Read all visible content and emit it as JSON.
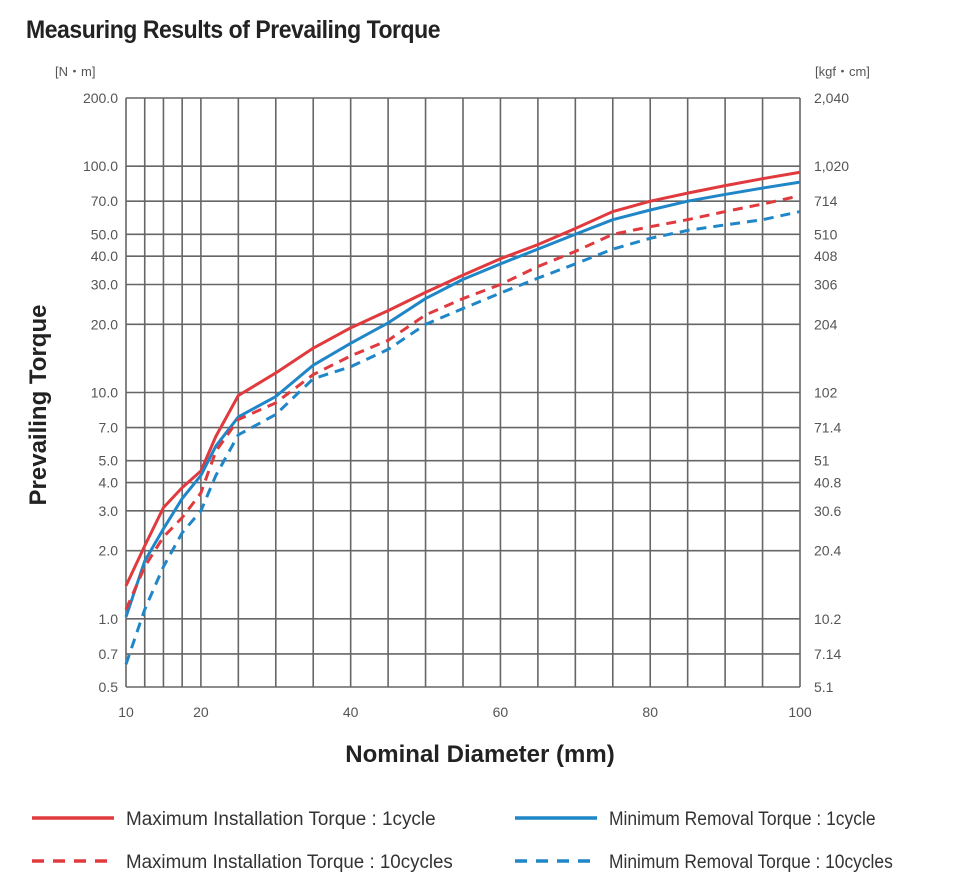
{
  "chart_data": {
    "type": "line",
    "title": "Measuring Results of Prevailing Torque",
    "xlabel": "Nominal Diameter (mm)",
    "ylabel": "Prevailing Torque",
    "y_unit_left": "[N・m]",
    "y_unit_right": "[kgf・cm]",
    "xlim": [
      10,
      100
    ],
    "ylim": [
      0.5,
      200
    ],
    "y_scale": "log",
    "grid": true,
    "legend_placement": "bottom",
    "x_ticks": [
      10,
      20,
      40,
      60,
      80,
      100
    ],
    "x_gridlines": [
      10,
      12.5,
      15,
      17.5,
      20,
      25,
      30,
      35,
      40,
      45,
      50,
      55,
      60,
      65,
      70,
      75,
      80,
      85,
      90,
      95,
      100
    ],
    "y_ticks": [
      200,
      100,
      70,
      50,
      40,
      30,
      20,
      10,
      7,
      5,
      4,
      3,
      2,
      1,
      0.7,
      0.5
    ],
    "y_tick_labels_left": [
      "200.0",
      "100.0",
      "70.0",
      "50.0",
      "40.0",
      "30.0",
      "20.0",
      "10.0",
      "7.0",
      "5.0",
      "4.0",
      "3.0",
      "2.0",
      "1.0",
      "0.7",
      "0.5"
    ],
    "y_tick_labels_right": [
      "2,040",
      "1,020",
      "714",
      "510",
      "408",
      "306",
      "204",
      "102",
      "71.4",
      "51",
      "40.8",
      "30.6",
      "20.4",
      "10.2",
      "7.14",
      "5.1"
    ],
    "x": [
      10,
      12.5,
      15,
      17.5,
      20,
      22,
      25,
      30,
      35,
      40,
      45,
      50,
      55,
      60,
      65,
      70,
      75,
      80,
      85,
      90,
      95,
      100
    ],
    "series": [
      {
        "name": "Maximum Installation Torque : 1cycle",
        "color": "#e03a3e",
        "style": "solid",
        "values": [
          1.4,
          2.1,
          3.1,
          3.8,
          4.5,
          6.4,
          9.7,
          12.2,
          15.7,
          19.3,
          23,
          27.7,
          33,
          39,
          45,
          53,
          63,
          70,
          76,
          82,
          88,
          94
        ]
      },
      {
        "name": "Minimum Removal Torque : 1cycle",
        "color": "#1f86c8",
        "style": "solid",
        "values": [
          1.02,
          1.8,
          2.5,
          3.4,
          4.3,
          5.8,
          7.8,
          9.6,
          13.2,
          16.5,
          20.3,
          26,
          31.6,
          37,
          43,
          50,
          58,
          64,
          70,
          75,
          80,
          85
        ]
      },
      {
        "name": "Maximum Installation Torque : 10cycles",
        "color": "#e03a3e",
        "style": "dashed",
        "values": [
          1.1,
          1.7,
          2.3,
          2.8,
          3.6,
          5.5,
          7.6,
          9.0,
          12,
          14.5,
          17,
          22,
          26,
          30,
          36,
          42,
          50,
          54,
          58,
          63,
          68,
          74
        ]
      },
      {
        "name": "Minimum Removal Torque : 10cycles",
        "color": "#1f86c8",
        "style": "dashed",
        "values": [
          0.63,
          1.1,
          1.7,
          2.4,
          3.0,
          4.3,
          6.5,
          8.0,
          11.5,
          13,
          15.5,
          20,
          23.5,
          27.5,
          32,
          37,
          43,
          48,
          52,
          55,
          58,
          63
        ]
      }
    ]
  }
}
